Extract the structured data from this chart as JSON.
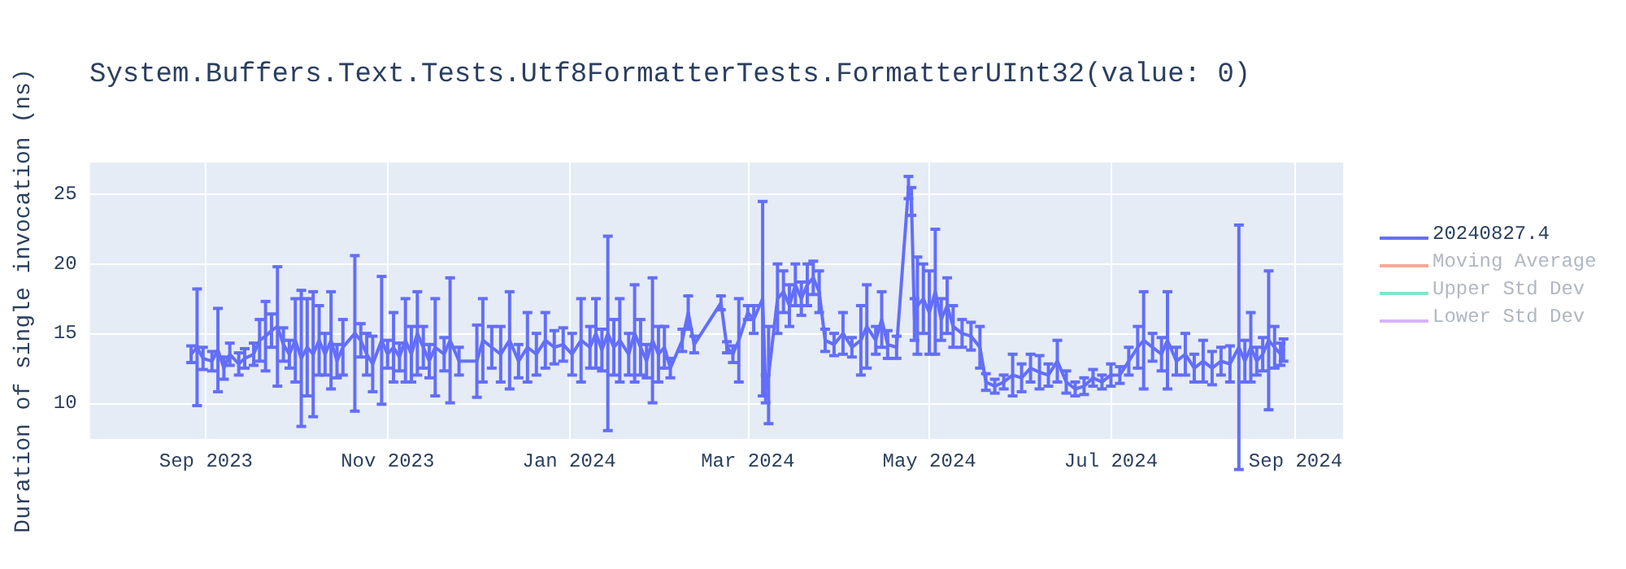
{
  "chart_data": {
    "type": "line",
    "title": "System.Buffers.Text.Tests.Utf8FormatterTests.FormatterUInt32(value: 0)",
    "ylabel": "Duration of single invocation (ns)",
    "xlim": [
      "2023-07-24",
      "2024-09-17"
    ],
    "xticks": [
      {
        "value": "2023-09",
        "label": "Sep 2023"
      },
      {
        "value": "2023-11",
        "label": "Nov 2023"
      },
      {
        "value": "2024-01",
        "label": "Jan 2024"
      },
      {
        "value": "2024-03",
        "label": "Mar 2024"
      },
      {
        "value": "2024-05",
        "label": "May 2024"
      },
      {
        "value": "2024-07",
        "label": "Jul 2024"
      },
      {
        "value": "2024-09",
        "label": "Sep 2024"
      }
    ],
    "ylim": [
      7.4,
      27.3
    ],
    "yticks": [
      10,
      15,
      20,
      25
    ],
    "grid": true,
    "legend": "top right",
    "marker": "none",
    "line_style": "solid",
    "series": [
      {
        "name": "20240827.4",
        "color": "#636efa",
        "x": [
          "2023-08-27",
          "2023-08-29",
          "2023-08-31",
          "2023-09-03",
          "2023-09-05",
          "2023-09-07",
          "2023-09-09",
          "2023-09-12",
          "2023-09-14",
          "2023-09-17",
          "2023-09-19",
          "2023-09-21",
          "2023-09-23",
          "2023-09-25",
          "2023-09-27",
          "2023-09-29",
          "2023-10-01",
          "2023-10-03",
          "2023-10-05",
          "2023-10-07",
          "2023-10-09",
          "2023-10-11",
          "2023-10-13",
          "2023-10-15",
          "2023-10-17",
          "2023-10-21",
          "2023-10-23",
          "2023-10-25",
          "2023-10-27",
          "2023-10-30",
          "2023-11-01",
          "2023-11-03",
          "2023-11-05",
          "2023-11-07",
          "2023-11-09",
          "2023-11-11",
          "2023-11-13",
          "2023-11-15",
          "2023-11-17",
          "2023-11-20",
          "2023-11-22",
          "2023-11-25",
          "2023-12-01",
          "2023-12-03",
          "2023-12-06",
          "2023-12-09",
          "2023-12-12",
          "2023-12-15",
          "2023-12-18",
          "2023-12-21",
          "2023-12-24",
          "2023-12-27",
          "2023-12-30",
          "2024-01-02",
          "2024-01-05",
          "2024-01-08",
          "2024-01-10",
          "2024-01-12",
          "2024-01-14",
          "2024-01-16",
          "2024-01-18",
          "2024-01-21",
          "2024-01-23",
          "2024-01-25",
          "2024-01-27",
          "2024-01-29",
          "2024-01-31",
          "2024-02-02",
          "2024-02-04",
          "2024-02-08",
          "2024-02-10",
          "2024-02-12",
          "2024-02-21",
          "2024-02-23",
          "2024-02-25",
          "2024-02-27",
          "2024-03-01",
          "2024-03-03",
          "2024-03-06",
          "2024-03-07",
          "2024-03-08",
          "2024-03-11",
          "2024-03-13",
          "2024-03-15",
          "2024-03-17",
          "2024-03-19",
          "2024-03-21",
          "2024-03-23",
          "2024-03-25",
          "2024-03-27",
          "2024-03-30",
          "2024-04-02",
          "2024-04-05",
          "2024-04-08",
          "2024-04-10",
          "2024-04-13",
          "2024-04-15",
          "2024-04-17",
          "2024-04-20",
          "2024-04-24",
          "2024-04-25",
          "2024-04-26",
          "2024-04-27",
          "2024-04-29",
          "2024-05-01",
          "2024-05-03",
          "2024-05-05",
          "2024-05-07",
          "2024-05-09",
          "2024-05-12",
          "2024-05-15",
          "2024-05-18",
          "2024-05-20",
          "2024-05-23",
          "2024-05-26",
          "2024-05-29",
          "2024-06-01",
          "2024-06-04",
          "2024-06-07",
          "2024-06-10",
          "2024-06-13",
          "2024-06-16",
          "2024-06-19",
          "2024-06-22",
          "2024-06-25",
          "2024-06-28",
          "2024-07-01",
          "2024-07-04",
          "2024-07-07",
          "2024-07-10",
          "2024-07-12",
          "2024-07-15",
          "2024-07-18",
          "2024-07-20",
          "2024-07-23",
          "2024-07-26",
          "2024-07-29",
          "2024-08-01",
          "2024-08-04",
          "2024-08-07",
          "2024-08-10",
          "2024-08-13",
          "2024-08-15",
          "2024-08-17",
          "2024-08-19",
          "2024-08-21",
          "2024-08-23",
          "2024-08-25",
          "2024-08-27",
          "2024-08-28"
        ],
        "values": [
          13.5,
          14,
          13.2,
          13,
          13.8,
          12.5,
          13.5,
          12.8,
          13.2,
          13.5,
          14.5,
          14.8,
          15.2,
          15.5,
          14.2,
          13.5,
          14.5,
          13.2,
          14,
          13.5,
          14.5,
          13.5,
          14.5,
          13,
          14,
          15,
          14.5,
          13.5,
          12.8,
          14.5,
          13.5,
          14,
          13.3,
          14.5,
          13.5,
          15,
          14,
          13,
          14,
          13.5,
          14.5,
          13,
          13,
          14.5,
          14,
          13.5,
          14.5,
          13,
          14,
          13.5,
          14.5,
          14,
          14.2,
          13.5,
          14.5,
          14,
          15,
          13.8,
          15,
          14,
          14.5,
          13.5,
          15,
          14,
          13,
          14.5,
          13.5,
          14,
          12.5,
          14.5,
          16.5,
          14.2,
          17.2,
          14,
          13.5,
          14.5,
          16.5,
          16,
          17.5,
          11,
          12,
          17.5,
          18,
          17,
          18.5,
          17.5,
          18.5,
          19,
          18,
          14.5,
          14.2,
          15,
          14,
          14.5,
          15.5,
          14.5,
          16,
          14.2,
          14,
          25.5,
          24.5,
          16,
          17,
          17.5,
          16.5,
          18,
          16,
          17,
          15.5,
          15,
          14.8,
          14,
          11.5,
          11.2,
          11.5,
          12,
          11.8,
          12.5,
          12.2,
          12,
          13,
          11.5,
          11,
          11.2,
          11.8,
          11.5,
          12,
          12,
          13,
          14,
          14.5,
          14,
          13.5,
          14.5,
          13,
          13.5,
          12.5,
          13,
          12.5,
          13,
          12.8,
          14,
          13,
          14,
          13,
          13.5,
          14.5,
          14,
          13.5,
          13.8
        ],
        "errors": [
          0.6,
          4.2,
          0.8,
          0.7,
          3,
          0.8,
          0.8,
          0.8,
          0.7,
          0.8,
          1.5,
          2.5,
          1.2,
          4.3,
          1.2,
          1,
          3,
          4.9,
          3.5,
          4.5,
          2.5,
          1.5,
          3.5,
          1.2,
          2,
          5.6,
          1.2,
          1.5,
          2,
          4.6,
          1,
          2.5,
          1,
          3,
          2,
          3,
          1.5,
          1.2,
          3.5,
          1.2,
          4.5,
          1,
          2.6,
          3,
          1.5,
          2,
          3.5,
          1.2,
          2.5,
          1.5,
          2,
          1.2,
          1.2,
          1.5,
          3,
          1.5,
          2.5,
          1.5,
          7,
          2,
          3,
          1.5,
          3.5,
          2,
          1.2,
          4.5,
          2,
          1.5,
          0.7,
          0.8,
          1.2,
          0.6,
          0.5,
          0.4,
          0.6,
          3,
          0.5,
          1,
          7,
          1,
          3.5,
          2.5,
          1.5,
          1.5,
          1.5,
          1.2,
          1.5,
          1.2,
          1.5,
          0.8,
          0.8,
          1.5,
          0.7,
          2.5,
          3,
          1,
          2,
          1,
          0.8,
          0.8,
          1,
          1.5,
          3.5,
          2.5,
          3,
          4.5,
          1.5,
          2,
          1.5,
          1,
          1,
          1.5,
          0.6,
          0.5,
          0.5,
          1.5,
          1,
          1,
          1.2,
          0.8,
          1.5,
          0.8,
          0.5,
          0.6,
          0.6,
          0.5,
          0.8,
          0.6,
          1,
          1.5,
          3.5,
          1,
          1.2,
          3.5,
          1,
          1.5,
          1,
          1.5,
          1.2,
          1,
          1.3,
          8.8,
          1.5,
          2.5,
          1,
          1.2,
          5,
          1.5,
          0.8,
          0.8
        ]
      },
      {
        "name": "Moving Average",
        "color": "#f7a995"
      },
      {
        "name": "Upper Std Dev",
        "color": "#80e5c9"
      },
      {
        "name": "Lower Std Dev",
        "color": "#d4b5fc"
      }
    ]
  }
}
